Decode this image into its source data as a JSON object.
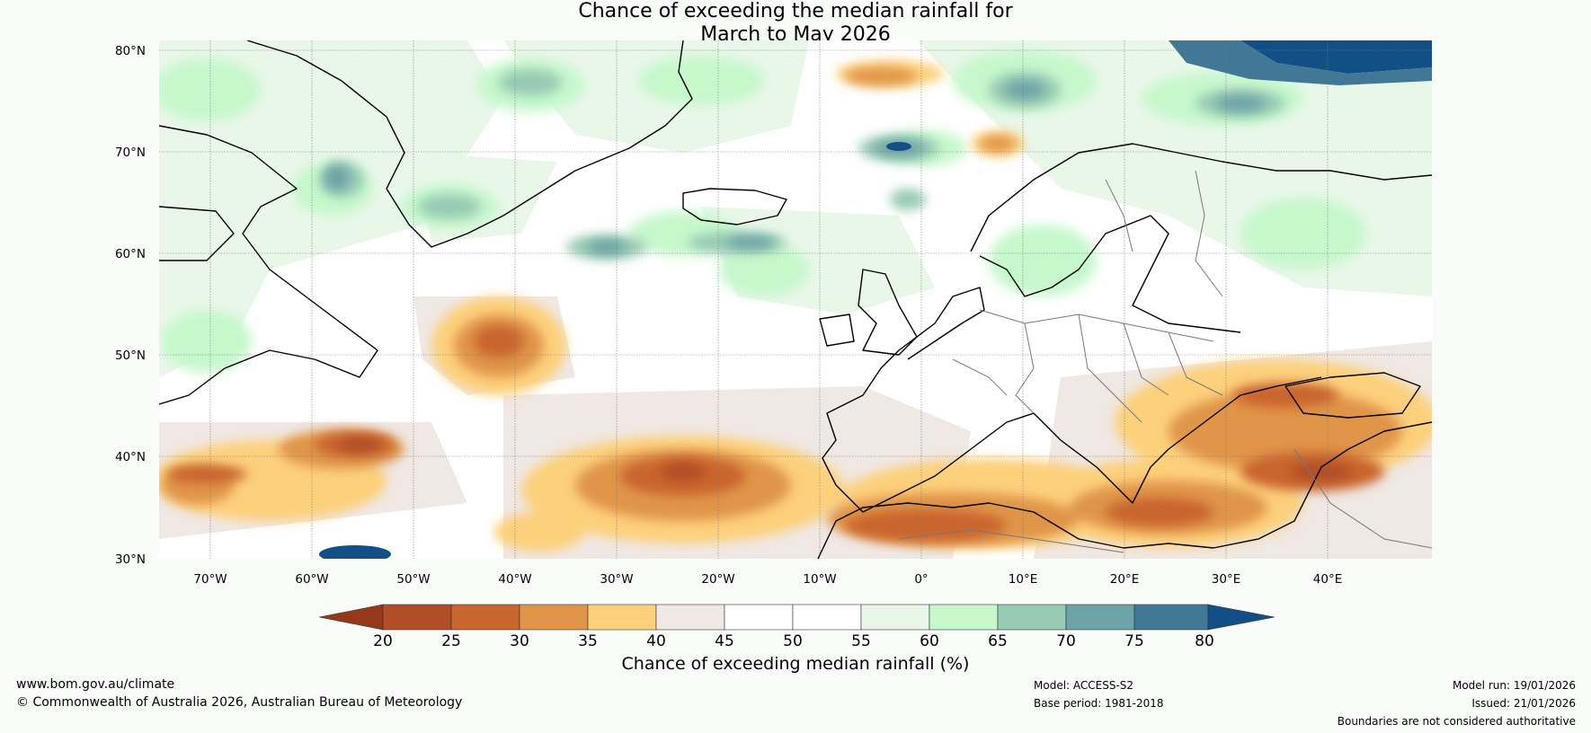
{
  "title": {
    "line1": "Chance of exceeding the median rainfall for",
    "line2": "March to May 2026"
  },
  "map": {
    "lat_labels": [
      "80°N",
      "70°N",
      "60°N",
      "50°N",
      "40°N",
      "30°N"
    ],
    "lon_labels": [
      "70°W",
      "60°W",
      "50°W",
      "40°W",
      "30°W",
      "20°W",
      "10°W",
      "0°",
      "10°E",
      "20°E",
      "30°E",
      "40°E"
    ],
    "extent": {
      "lon_min": -75,
      "lon_max": 50,
      "lat_min": 30,
      "lat_max": 81
    }
  },
  "colorbar": {
    "title": "Chance of exceeding median rainfall (%)",
    "ticks": [
      "20",
      "25",
      "30",
      "35",
      "40",
      "45",
      "50",
      "55",
      "60",
      "65",
      "70",
      "75",
      "80"
    ],
    "colors": {
      "lt20": "#96391a",
      "c20_25": "#b04e27",
      "c25_30": "#c9652e",
      "c30_35": "#e09548",
      "c35_40": "#fdd07b",
      "c40_45": "#efe8e4",
      "c45_50": "#ffffff",
      "c50_55": "#ffffff",
      "c55_60": "#e9f7e9",
      "c60_65": "#c6f8cc",
      "c65_70": "#98cbb4",
      "c70_75": "#6ea3a8",
      "c75_80": "#407896",
      "gt80": "#134f87"
    }
  },
  "footer": {
    "url": "www.bom.gov.au/climate",
    "copyright": "© Commonwealth of Australia 2026, Australian Bureau of Meteorology",
    "model": "Model: ACCESS-S2",
    "base_period": "Base period: 1981-2018",
    "model_run": "Model run: 19/01/2026",
    "issued": "Issued: 21/01/2026",
    "disclaimer": "Boundaries are not considered authoritative"
  }
}
